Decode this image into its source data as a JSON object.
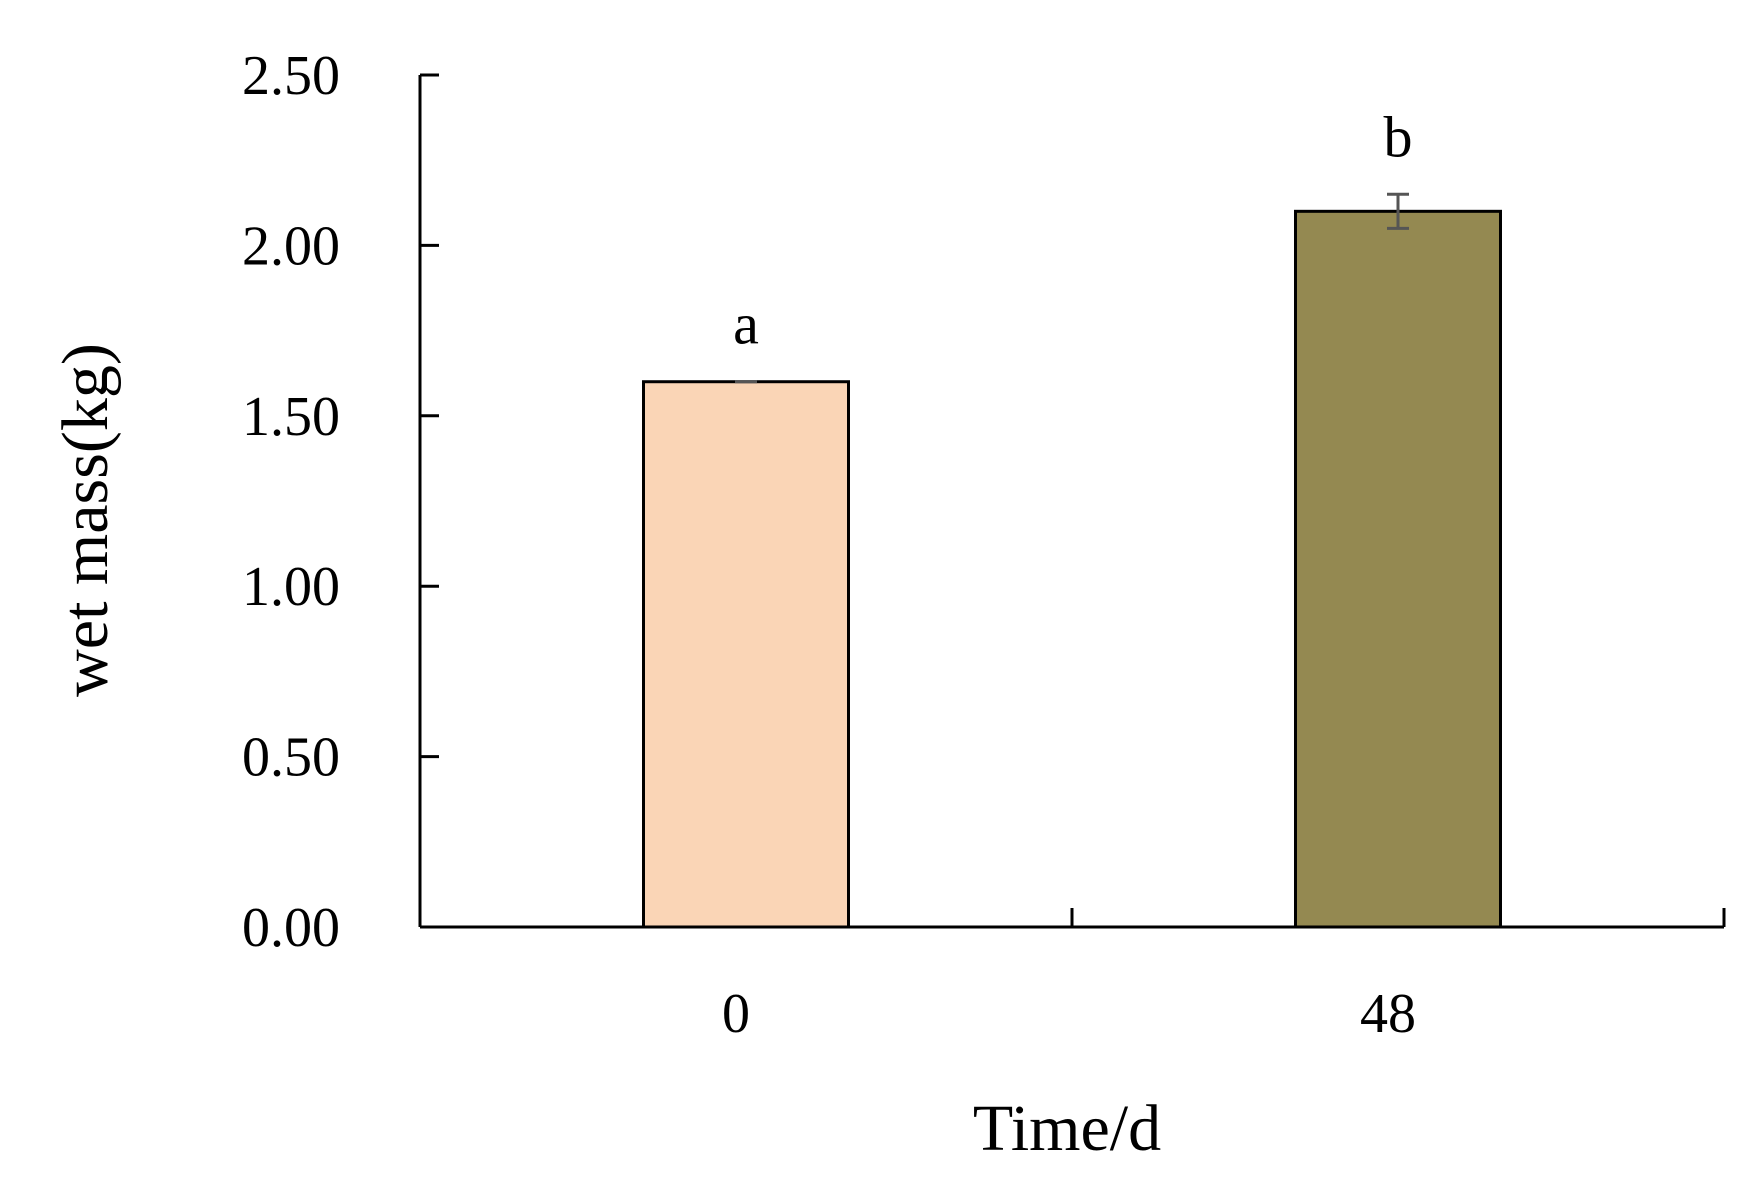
{
  "chart_data": {
    "type": "bar",
    "title": "",
    "xlabel": "Time/d",
    "ylabel": "wet mass(kg)",
    "categories": [
      "0",
      "48"
    ],
    "values": [
      1.6,
      2.1
    ],
    "errors": [
      0.0,
      0.05
    ],
    "significance_labels": [
      "a",
      "b"
    ],
    "bar_colors": [
      "#FAD5B6",
      "#948951"
    ],
    "error_bar_color": "#555555",
    "ylim": [
      0,
      2.5
    ],
    "yticks": [
      0,
      0.5,
      1.0,
      1.5,
      2.0,
      2.5
    ],
    "ytick_labels": [
      "0.00",
      "0.50",
      "1.00",
      "1.50",
      "2.00",
      "2.50"
    ],
    "grid": false,
    "legend": "none"
  }
}
